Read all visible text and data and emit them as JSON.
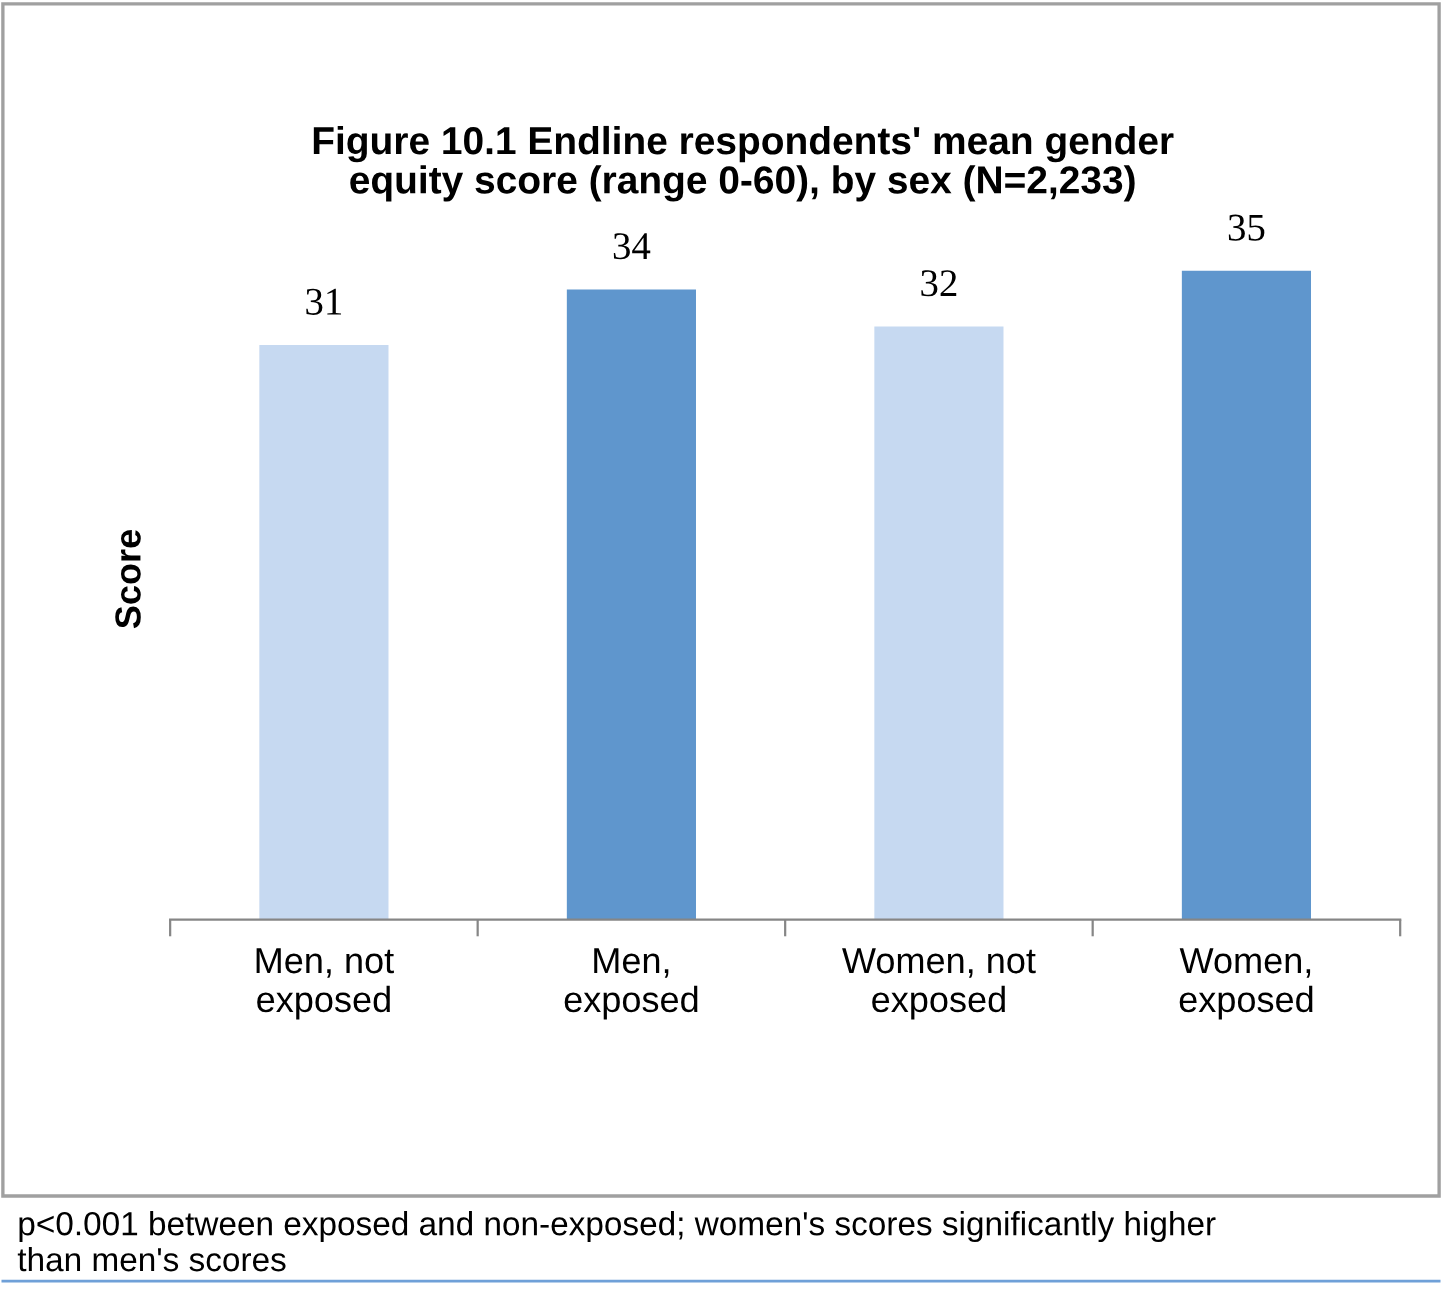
{
  "chart_data": {
    "type": "bar",
    "title": "Figure 10.1 Endline respondents' mean gender equity score (range 0-60), by sex (N=2,233)",
    "ylabel": "Score",
    "categories": [
      "Men, not exposed",
      "Men, exposed",
      "Women, not exposed",
      "Women, exposed"
    ],
    "values": [
      31,
      34,
      32,
      35
    ],
    "colors": [
      "#c6d9f1",
      "#5f96cd",
      "#c6d9f1",
      "#5f96cd"
    ],
    "data_labels": true,
    "tick_labels": "x",
    "grid": false,
    "legend": false,
    "annotations": [
      "p<0.001 between exposed and non-exposed; women's scores significantly higher than men's scores"
    ]
  }
}
